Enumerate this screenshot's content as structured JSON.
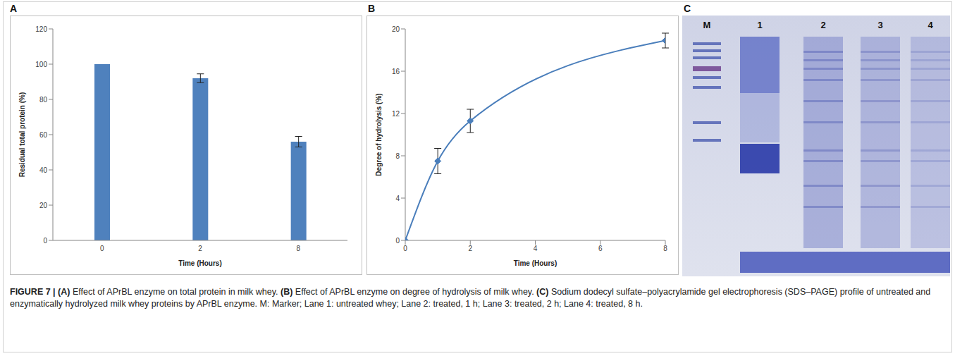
{
  "chart_data": [
    {
      "panel": "A",
      "type": "bar",
      "categories": [
        "0",
        "2",
        "8"
      ],
      "values": [
        100,
        92,
        56
      ],
      "errors": [
        null,
        2.5,
        3
      ],
      "color": "#4f81bd",
      "x_label": "Time (Hours)",
      "y_label": "Residual total protein (%)",
      "ylim": [
        0,
        120
      ],
      "yticks": [
        0,
        20,
        40,
        60,
        80,
        100,
        120
      ],
      "grid": false
    },
    {
      "panel": "B",
      "type": "line",
      "x": [
        0,
        1,
        2,
        8
      ],
      "values": [
        0,
        7.5,
        11.3,
        18.9
      ],
      "errors": [
        null,
        1.2,
        1.1,
        0.7
      ],
      "color": "#4a7ebb",
      "marker": "diamond",
      "x_label": "Time (Hours)",
      "y_label": "Degree of hydrolysis (%)",
      "xlim": [
        0,
        8
      ],
      "xticks": [
        0,
        2,
        4,
        6,
        8
      ],
      "ylim": [
        0,
        20
      ],
      "yticks": [
        0,
        4,
        8,
        12,
        16,
        20
      ],
      "grid": false
    }
  ],
  "gel": {
    "panel": "C",
    "lanes": [
      "M",
      "1",
      "2",
      "3",
      "4"
    ]
  },
  "caption": [
    {
      "text": "FIGURE 7 | (A)",
      "bold": true
    },
    {
      "text": " Effect of APrBL enzyme on total protein in milk whey. ",
      "bold": false
    },
    {
      "text": "(B)",
      "bold": true
    },
    {
      "text": " Effect of APrBL enzyme on degree of hydrolysis of milk whey. ",
      "bold": false
    },
    {
      "text": "(C)",
      "bold": true
    },
    {
      "text": " Sodium dodecyl sulfate–polyacrylamide gel electrophoresis (SDS–PAGE) profile of untreated and enzymatically hydrolyzed milk whey proteins by APrBL enzyme. M: Marker; Lane 1: untreated whey; Lane 2: treated, 1 h; Lane 3: treated, 2 h; Lane 4: treated, 8 h.",
      "bold": false
    }
  ]
}
